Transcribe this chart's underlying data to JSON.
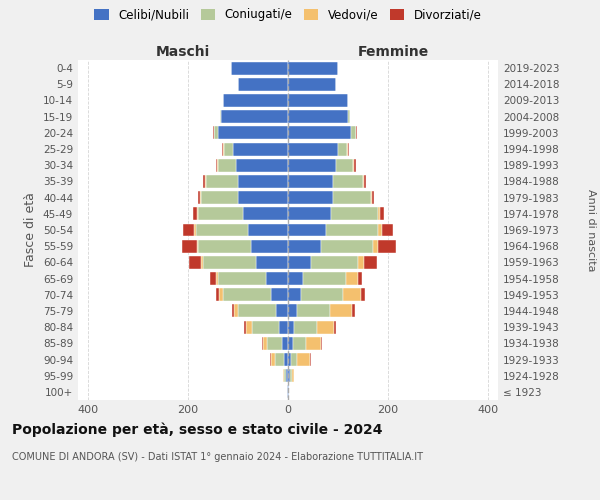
{
  "age_groups": [
    "100+",
    "95-99",
    "90-94",
    "85-89",
    "80-84",
    "75-79",
    "70-74",
    "65-69",
    "60-64",
    "55-59",
    "50-54",
    "45-49",
    "40-44",
    "35-39",
    "30-34",
    "25-29",
    "20-24",
    "15-19",
    "10-14",
    "5-9",
    "0-4"
  ],
  "birth_years": [
    "≤ 1923",
    "1924-1928",
    "1929-1933",
    "1934-1938",
    "1939-1943",
    "1944-1948",
    "1949-1953",
    "1954-1958",
    "1959-1963",
    "1964-1968",
    "1969-1973",
    "1974-1978",
    "1979-1983",
    "1984-1988",
    "1989-1993",
    "1994-1998",
    "1999-2003",
    "2004-2008",
    "2009-2013",
    "2014-2018",
    "2019-2023"
  ],
  "colors": {
    "celibe": "#4472c4",
    "coniugato": "#b5c99a",
    "vedovo": "#f4c06e",
    "divorziato": "#c0392b"
  },
  "males_celibe": [
    2,
    4,
    8,
    12,
    18,
    25,
    35,
    45,
    65,
    75,
    80,
    90,
    100,
    100,
    105,
    110,
    140,
    135,
    130,
    100,
    115
  ],
  "males_coniugato": [
    0,
    4,
    18,
    30,
    55,
    75,
    95,
    95,
    105,
    105,
    105,
    90,
    75,
    65,
    35,
    18,
    8,
    2,
    0,
    0,
    0
  ],
  "males_vedovo": [
    0,
    3,
    8,
    8,
    12,
    8,
    8,
    4,
    4,
    3,
    3,
    2,
    2,
    2,
    2,
    2,
    1,
    0,
    0,
    0,
    0
  ],
  "males_divorziato": [
    0,
    0,
    2,
    2,
    3,
    4,
    6,
    12,
    25,
    30,
    22,
    8,
    4,
    4,
    3,
    2,
    1,
    0,
    0,
    0,
    0
  ],
  "females_nubile": [
    2,
    4,
    6,
    10,
    12,
    18,
    25,
    30,
    45,
    65,
    75,
    85,
    90,
    90,
    95,
    100,
    125,
    120,
    120,
    95,
    100
  ],
  "females_coniugata": [
    0,
    4,
    12,
    25,
    45,
    65,
    85,
    85,
    95,
    105,
    105,
    95,
    75,
    60,
    35,
    18,
    10,
    3,
    0,
    0,
    0
  ],
  "females_vedova": [
    0,
    4,
    25,
    30,
    35,
    45,
    35,
    25,
    12,
    10,
    8,
    4,
    3,
    2,
    2,
    2,
    1,
    0,
    0,
    0,
    0
  ],
  "females_divorziata": [
    0,
    0,
    2,
    3,
    3,
    6,
    8,
    8,
    25,
    35,
    22,
    8,
    4,
    4,
    3,
    2,
    1,
    0,
    0,
    0,
    0
  ],
  "xlim": 420,
  "title": "Popolazione per età, sesso e stato civile - 2024",
  "subtitle": "COMUNE DI ANDORA (SV) - Dati ISTAT 1° gennaio 2024 - Elaborazione TUTTITALIA.IT",
  "ylabel_left": "Fasce di età",
  "ylabel_right": "Anni di nascita",
  "xlabel_left": "Maschi",
  "xlabel_right": "Femmine",
  "bg_color": "#f0f0f0",
  "plot_bg": "#ffffff"
}
